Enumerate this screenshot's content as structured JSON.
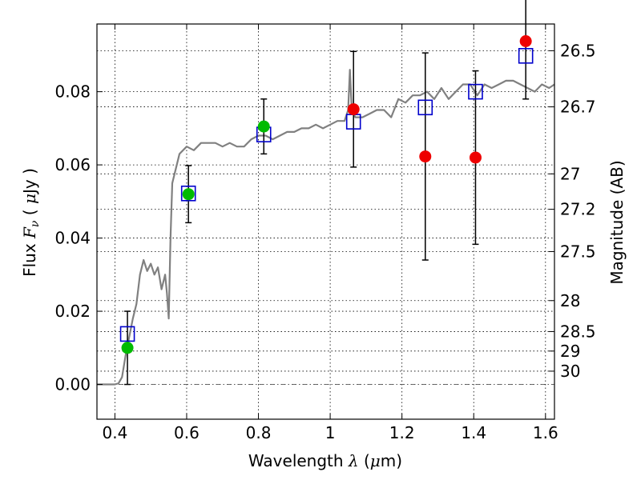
{
  "chart_data": {
    "type": "scatter",
    "xlabel": "Wavelength  λ (μm)",
    "ylabel": "Flux  F_ν  ( μJy )",
    "ylabel_right": "Magnitude (AB)",
    "xlim": [
      0.35,
      1.625
    ],
    "ylim": [
      -0.0095,
      0.0985
    ],
    "x_ticks": [
      0.4,
      0.6,
      0.8,
      1.0,
      1.2,
      1.4,
      1.6
    ],
    "x_tick_labels": [
      "0.4",
      "0.6",
      "0.8",
      "1",
      "1.2",
      "1.4",
      "1.6"
    ],
    "y_ticks": [
      0.0,
      0.02,
      0.04,
      0.06,
      0.08
    ],
    "y_tick_labels": [
      "0.00",
      "0.02",
      "0.04",
      "0.06",
      "0.08"
    ],
    "mag_ticks": [
      26.5,
      26.7,
      27,
      27.2,
      27.5,
      28,
      28.5,
      29,
      30
    ],
    "mag_tick_labels": [
      "26.5",
      "26.7",
      "27",
      "27.2",
      "27.5",
      "28",
      "28.5",
      "29",
      "30"
    ],
    "grid": true,
    "colors": {
      "spectrum": "#808080",
      "model_box": "#0000cc",
      "green_point": "#00bb00",
      "red_point": "#ee0000",
      "errorbar": "#000000"
    },
    "spectrum": {
      "x": [
        0.35,
        0.38,
        0.4,
        0.41,
        0.42,
        0.43,
        0.44,
        0.45,
        0.46,
        0.47,
        0.48,
        0.49,
        0.5,
        0.51,
        0.52,
        0.53,
        0.54,
        0.545,
        0.55,
        0.555,
        0.56,
        0.57,
        0.58,
        0.6,
        0.62,
        0.64,
        0.66,
        0.68,
        0.7,
        0.72,
        0.74,
        0.76,
        0.78,
        0.8,
        0.82,
        0.84,
        0.86,
        0.88,
        0.9,
        0.92,
        0.94,
        0.96,
        0.98,
        1.0,
        1.02,
        1.04,
        1.05,
        1.055,
        1.06,
        1.07,
        1.09,
        1.11,
        1.13,
        1.15,
        1.17,
        1.19,
        1.21,
        1.23,
        1.25,
        1.27,
        1.29,
        1.31,
        1.33,
        1.35,
        1.37,
        1.39,
        1.41,
        1.43,
        1.45,
        1.47,
        1.49,
        1.51,
        1.53,
        1.55,
        1.57,
        1.59,
        1.61,
        1.625
      ],
      "y": [
        0.0,
        0.0,
        0.0,
        0.0003,
        0.002,
        0.008,
        0.013,
        0.018,
        0.022,
        0.03,
        0.034,
        0.031,
        0.033,
        0.03,
        0.032,
        0.026,
        0.03,
        0.025,
        0.018,
        0.04,
        0.055,
        0.059,
        0.063,
        0.065,
        0.064,
        0.066,
        0.066,
        0.066,
        0.065,
        0.066,
        0.065,
        0.065,
        0.067,
        0.068,
        0.068,
        0.067,
        0.068,
        0.069,
        0.069,
        0.07,
        0.07,
        0.071,
        0.07,
        0.071,
        0.072,
        0.072,
        0.075,
        0.086,
        0.075,
        0.073,
        0.073,
        0.074,
        0.075,
        0.075,
        0.073,
        0.078,
        0.077,
        0.079,
        0.079,
        0.08,
        0.078,
        0.081,
        0.078,
        0.08,
        0.082,
        0.082,
        0.079,
        0.082,
        0.081,
        0.082,
        0.083,
        0.083,
        0.082,
        0.081,
        0.08,
        0.082,
        0.081,
        0.082
      ]
    },
    "model_boxes": {
      "x": [
        0.435,
        0.605,
        0.815,
        1.065,
        1.265,
        1.405,
        1.545
      ],
      "y": [
        0.0138,
        0.0522,
        0.0683,
        0.0718,
        0.0757,
        0.08,
        0.0898
      ]
    },
    "observed_green": {
      "x": [
        0.435,
        0.605,
        0.815
      ],
      "y": [
        0.01,
        0.052,
        0.0705
      ],
      "err": [
        0.01,
        0.0078,
        0.0075
      ]
    },
    "observed_red": {
      "x": [
        1.065,
        1.265,
        1.405,
        1.545
      ],
      "y": [
        0.0752,
        0.0623,
        0.062,
        0.0938
      ],
      "err": [
        0.0158,
        0.0283,
        0.0237,
        0.0158
      ]
    }
  }
}
